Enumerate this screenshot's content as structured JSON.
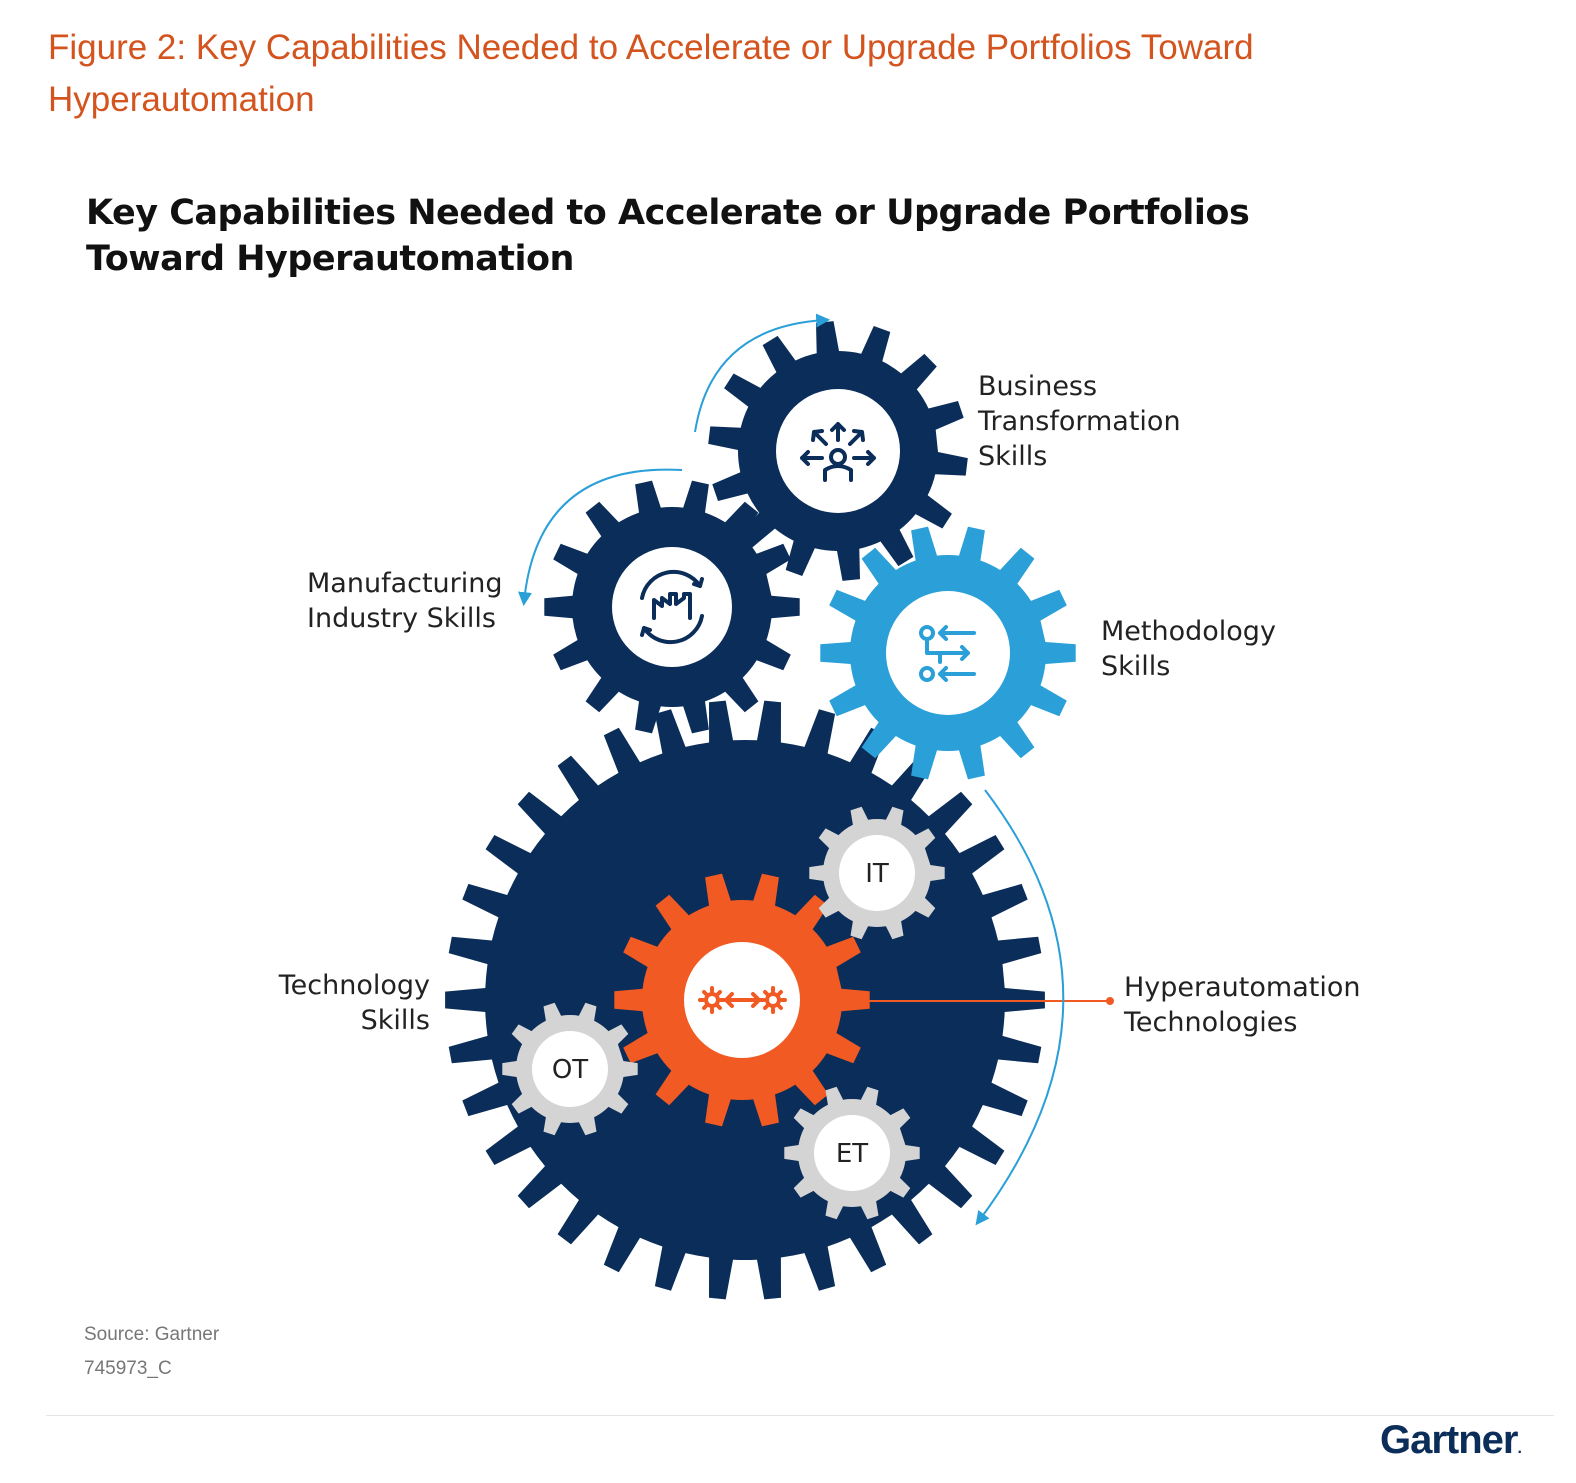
{
  "figure_caption": "Figure 2: Key Capabilities Needed to Accelerate or Upgrade Portfolios Toward Hyperautomation",
  "infographic": {
    "title_line1": "Key Capabilities Needed to Accelerate or Upgrade Portfolios",
    "title_line2": "Toward Hyperautomation"
  },
  "gears": {
    "business_transformation": {
      "label_line1": "Business",
      "label_line2": "Transformation",
      "label_line3": "Skills",
      "color": "#0b2d59",
      "icon": "people-arrows-icon"
    },
    "manufacturing_industry": {
      "label_line1": "Manufacturing",
      "label_line2": "Industry Skills",
      "color": "#0b2d59",
      "icon": "factory-cycle-icon"
    },
    "methodology": {
      "label_line1": "Methodology",
      "label_line2": "Skills",
      "color": "#2a9fd8",
      "icon": "process-flow-icon"
    },
    "technology": {
      "label_line1": "Technology",
      "label_line2": "Skills",
      "color": "#0b2d59"
    },
    "hyperautomation": {
      "label_line1": "Hyperautomation",
      "label_line2": "Technologies",
      "color": "#f15a22",
      "icon": "gears-connect-icon"
    },
    "it": {
      "label": "IT",
      "color": "#d4d4d4"
    },
    "ot": {
      "label": "OT",
      "color": "#d4d4d4"
    },
    "et": {
      "label": "ET",
      "color": "#d4d4d4"
    }
  },
  "arrow_color": "#2a9fd8",
  "source": "Source: Gartner",
  "doc_id": "745973_C",
  "logo": "Gartner",
  "logo_mark": "."
}
